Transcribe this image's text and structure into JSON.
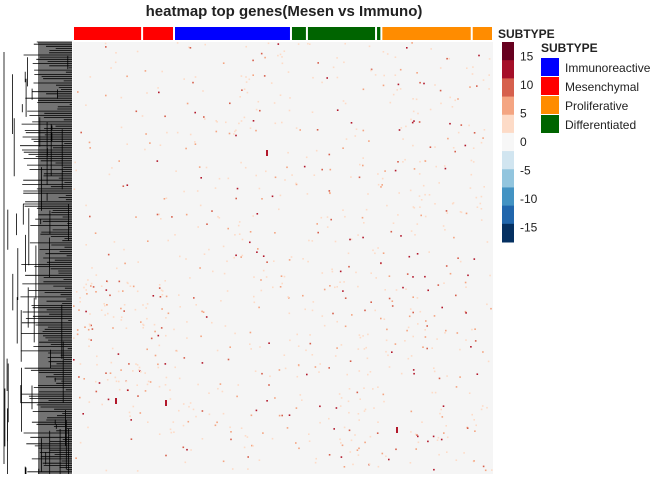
{
  "chart_data": {
    "type": "heatmap",
    "title": "heatmap top genes(Mesen vs Immuno)",
    "annotation_label": "SUBTYPE",
    "column_annotation": [
      {
        "subtype": "Mesenchymal",
        "count": 13
      },
      {
        "subtype": "Mesenchymal",
        "count": 6
      },
      {
        "subtype": "Immunoreactive",
        "count": 22
      },
      {
        "subtype": "Differentiated",
        "count": 3
      },
      {
        "subtype": "Differentiated",
        "count": 13
      },
      {
        "subtype": "Differentiated",
        "count": 1
      },
      {
        "subtype": "Proliferative",
        "count": 17
      },
      {
        "subtype": "Proliferative",
        "count": 4
      }
    ],
    "dendrogram": "rows",
    "colorbar": {
      "ticks": [
        15,
        10,
        5,
        0,
        -5,
        -10,
        -15
      ],
      "levels": [
        {
          "color": "#67001F"
        },
        {
          "color": "#A50F29"
        },
        {
          "color": "#D6604D"
        },
        {
          "color": "#F4A582"
        },
        {
          "color": "#FDDBC7"
        },
        {
          "color": "#F7F7F7"
        },
        {
          "color": "#D1E5F0"
        },
        {
          "color": "#92C5DE"
        },
        {
          "color": "#4393C3"
        },
        {
          "color": "#2166AC"
        },
        {
          "color": "#053061"
        }
      ]
    },
    "legend": {
      "title": "SUBTYPE",
      "items": [
        {
          "label": "Immunoreactive",
          "color": "#0000FF"
        },
        {
          "label": "Mesenchymal",
          "color": "#FF0000"
        },
        {
          "label": "Proliferative",
          "color": "#FF8C00"
        },
        {
          "label": "Differentiated",
          "color": "#006400"
        }
      ]
    }
  }
}
